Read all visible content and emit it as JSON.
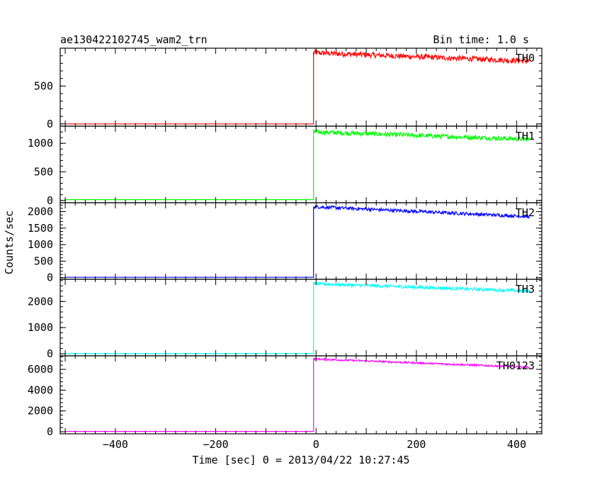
{
  "header": {
    "title": "ae130422102745_wam2_trn",
    "bin_time": "Bin time: 1.0 s"
  },
  "chart_data": {
    "type": "line",
    "xlabel": "Time [sec] 0 = 2013/04/22 10:27:45",
    "ylabel": "Counts/sec",
    "xlim": [
      -510,
      450
    ],
    "x_ticks": [
      -400,
      -200,
      0,
      200,
      400
    ],
    "x_range": [
      -500,
      425
    ],
    "onset_x": -5,
    "panels": [
      {
        "name": "TH0",
        "color": "#ff0000",
        "ylim": [
          -30,
          1000
        ],
        "yticks": [
          0,
          500
        ],
        "baseline": 0,
        "onset_peak": 940,
        "end_level": 830,
        "noise": 35
      },
      {
        "name": "TH1",
        "color": "#00ff00",
        "ylim": [
          -40,
          1300
        ],
        "yticks": [
          0,
          500,
          1000
        ],
        "baseline": 15,
        "onset_peak": 1200,
        "end_level": 1070,
        "noise": 40
      },
      {
        "name": "TH2",
        "color": "#0000ff",
        "ylim": [
          -50,
          2270
        ],
        "yticks": [
          0,
          500,
          1000,
          1500,
          2000
        ],
        "baseline": 10,
        "onset_peak": 2150,
        "end_level": 1850,
        "noise": 50
      },
      {
        "name": "TH3",
        "color": "#00ffff",
        "ylim": [
          -80,
          2850
        ],
        "yticks": [
          0,
          1000,
          2000
        ],
        "baseline": 5,
        "onset_peak": 2680,
        "end_level": 2400,
        "noise": 60
      },
      {
        "name": "TH0123",
        "color": "#ff00ff",
        "ylim": [
          -200,
          7300
        ],
        "yticks": [
          0,
          2000,
          4000,
          6000
        ],
        "baseline": 30,
        "onset_peak": 7000,
        "end_level": 6200,
        "noise": 90
      }
    ]
  }
}
